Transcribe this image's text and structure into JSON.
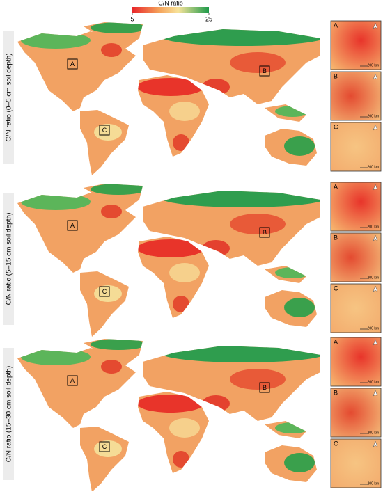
{
  "colorbar": {
    "title": "C/N ratio",
    "lim": [
      5,
      25
    ],
    "ticks": [
      5,
      25
    ]
  },
  "panels": [
    {
      "label": "C/N ratio (0–5 cm soil depth)",
      "regions": [
        "A",
        "B",
        "C"
      ],
      "insets": [
        {
          "label": "A",
          "scale": "200 km"
        },
        {
          "label": "B",
          "scale": "200 km"
        },
        {
          "label": "C",
          "scale": "200 km"
        }
      ]
    },
    {
      "label": "C/N ratio (5–15 cm soil depth)",
      "regions": [
        "A",
        "B",
        "C"
      ],
      "insets": [
        {
          "label": "A",
          "scale": "200 km"
        },
        {
          "label": "B",
          "scale": "200 km"
        },
        {
          "label": "C",
          "scale": "200 km"
        }
      ]
    },
    {
      "label": "C/N ratio (15–30 cm soil depth)",
      "regions": [
        "A",
        "B",
        "C"
      ],
      "insets": [
        {
          "label": "A",
          "scale": "200 km"
        },
        {
          "label": "B",
          "scale": "200 km"
        },
        {
          "label": "C",
          "scale": "200 km"
        }
      ]
    }
  ]
}
